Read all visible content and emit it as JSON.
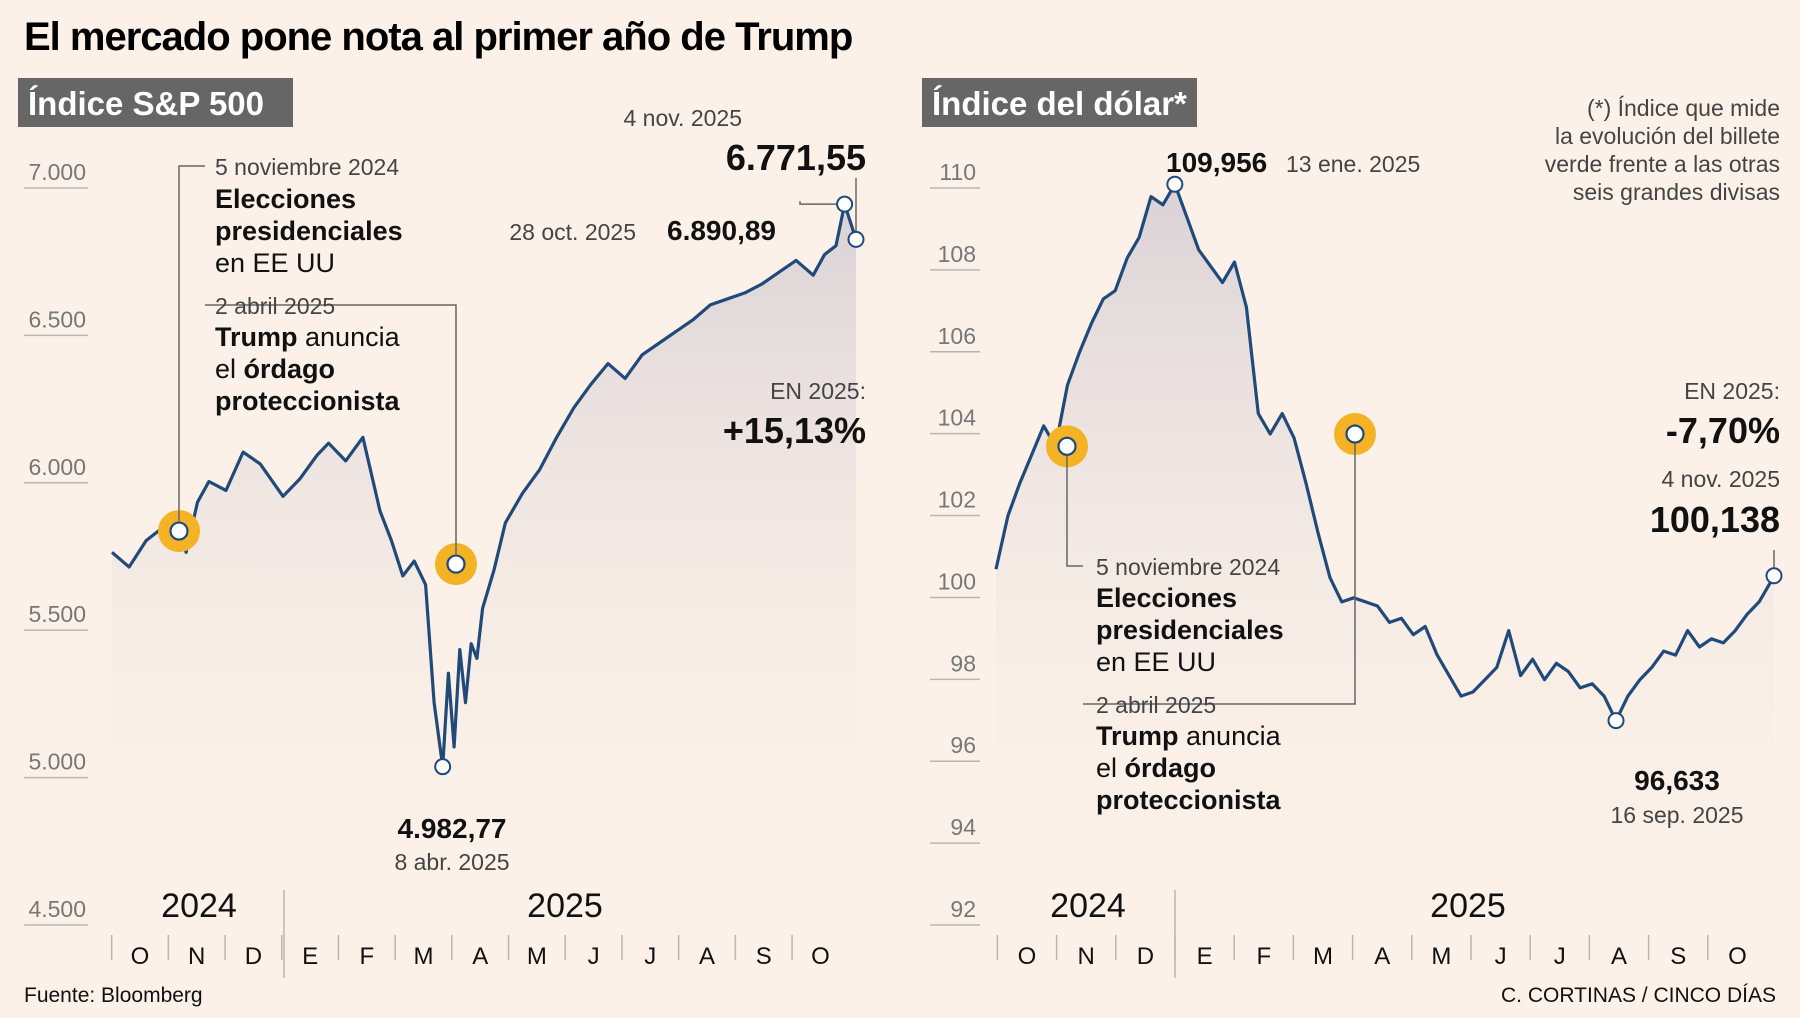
{
  "title": "El mercado pone nota al primer año de Trump",
  "source": "Fuente: Bloomberg",
  "credit": "C. CORTINAS / CINCO DÍAS",
  "colors": {
    "line": "#1f4a7a",
    "highlight": "#f3b324",
    "tag_bg": "#666666",
    "positive": "#1a6fb5",
    "negative": "#e0243c"
  },
  "chart_data": [
    {
      "type": "line",
      "title": "Índice S&P 500",
      "ylim": [
        4500,
        7000
      ],
      "yticks": [
        7000,
        6500,
        6000,
        5500,
        5000,
        4500
      ],
      "ytick_labels": [
        "7.000",
        "6.500",
        "6.000",
        "5.500",
        "5.000",
        "4.500"
      ],
      "years": [
        "2024",
        "2025"
      ],
      "months": [
        "O",
        "N",
        "D",
        "E",
        "F",
        "M",
        "A",
        "M",
        "J",
        "J",
        "A",
        "S",
        "O"
      ],
      "series": [
        {
          "name": "S&P 500",
          "x": [
            0.0,
            0.3,
            0.6,
            1.0,
            1.18,
            1.3,
            1.5,
            1.7,
            2.0,
            2.3,
            2.6,
            3.0,
            3.3,
            3.6,
            3.8,
            4.1,
            4.4,
            4.7,
            4.9,
            5.1,
            5.3,
            5.5,
            5.65,
            5.8,
            5.9,
            6.0,
            6.1,
            6.2,
            6.3,
            6.4,
            6.5,
            6.7,
            6.9,
            7.2,
            7.5,
            7.8,
            8.1,
            8.4,
            8.7,
            9.0,
            9.3,
            9.6,
            9.9,
            10.2,
            10.5,
            10.8,
            11.1,
            11.4,
            11.7,
            12.0,
            12.3,
            12.5,
            12.7,
            12.85,
            13.05
          ],
          "y": [
            5710,
            5660,
            5750,
            5810,
            5782,
            5710,
            5880,
            5950,
            5920,
            6050,
            6010,
            5900,
            5960,
            6040,
            6080,
            6020,
            6100,
            5850,
            5750,
            5630,
            5680,
            5600,
            5200,
            4982.77,
            5300,
            5050,
            5380,
            5200,
            5400,
            5350,
            5520,
            5650,
            5810,
            5910,
            5990,
            6100,
            6200,
            6280,
            6350,
            6300,
            6380,
            6420,
            6460,
            6500,
            6550,
            6570,
            6590,
            6620,
            6660,
            6700,
            6650,
            6720,
            6750,
            6890.89,
            6771.55
          ]
        }
      ],
      "annotations": [
        {
          "date": "5 noviembre 2024",
          "lines": [
            "Elecciones",
            "presidenciales",
            "en EE UU"
          ],
          "value": 5782
        },
        {
          "date": "2 abril 2025",
          "lines": [
            "Trump anuncia",
            "el órdago",
            "proteccionista"
          ],
          "value": 5670
        }
      ],
      "min": {
        "value_label": "4.982,77",
        "date": "8 abr. 2025"
      },
      "peak": {
        "date": "28 oct. 2025",
        "value_label": "6.890,89"
      },
      "last": {
        "date": "4 nov. 2025",
        "value_label": "6.771,55"
      },
      "ytd": {
        "label": "EN 2025:",
        "value": "+15,13%"
      }
    },
    {
      "type": "line",
      "title": "Índice del dólar*",
      "note": [
        "(*) Índice que mide",
        "la evolución del billete",
        "verde frente a las otras",
        "seis grandes divisas"
      ],
      "ylim": [
        92,
        110
      ],
      "yticks": [
        110,
        108,
        106,
        104,
        102,
        100,
        98,
        96,
        94,
        92
      ],
      "ytick_labels": [
        "110",
        "108",
        "106",
        "104",
        "102",
        "100",
        "98",
        "96",
        "94",
        "92"
      ],
      "years": [
        "2024",
        "2025"
      ],
      "months": [
        "O",
        "N",
        "D",
        "E",
        "F",
        "M",
        "A",
        "M",
        "J",
        "J",
        "A",
        "S",
        "O"
      ],
      "series": [
        {
          "name": "Índice del dólar",
          "x": [
            0.0,
            0.2,
            0.4,
            0.6,
            0.8,
            1.0,
            1.2,
            1.4,
            1.6,
            1.8,
            2.0,
            2.2,
            2.4,
            2.6,
            2.8,
            3.0,
            3.2,
            3.4,
            3.6,
            3.8,
            4.0,
            4.2,
            4.4,
            4.6,
            4.8,
            5.0,
            5.2,
            5.4,
            5.6,
            5.8,
            6.0,
            6.2,
            6.4,
            6.6,
            6.8,
            7.0,
            7.2,
            7.4,
            7.6,
            7.8,
            8.0,
            8.2,
            8.4,
            8.6,
            8.8,
            9.0,
            9.2,
            9.4,
            9.6,
            9.8,
            10.0,
            10.2,
            10.4,
            10.6,
            10.8,
            11.0,
            11.2,
            11.4,
            11.6,
            11.8,
            12.0,
            12.2,
            12.4,
            12.6,
            12.8,
            13.0,
            13.05
          ],
          "y": [
            100.3,
            101.6,
            102.4,
            103.1,
            103.8,
            103.3,
            104.8,
            105.6,
            106.3,
            106.9,
            107.1,
            107.9,
            108.4,
            109.4,
            109.2,
            109.7,
            108.9,
            108.1,
            107.7,
            107.3,
            107.8,
            106.7,
            104.1,
            103.6,
            104.1,
            103.5,
            102.4,
            101.2,
            100.1,
            99.5,
            99.6,
            99.5,
            99.4,
            99.0,
            99.1,
            98.7,
            98.9,
            98.2,
            97.7,
            97.2,
            97.3,
            97.6,
            97.9,
            98.8,
            97.7,
            98.1,
            97.6,
            98.0,
            97.8,
            97.4,
            97.5,
            97.2,
            96.6,
            97.2,
            97.6,
            97.9,
            98.3,
            98.2,
            98.8,
            98.4,
            98.6,
            98.5,
            98.8,
            99.2,
            99.5,
            100.0,
            100.138
          ]
        }
      ],
      "annotations": [
        {
          "date": "5 noviembre 2024",
          "lines": [
            "Elecciones",
            "presidenciales",
            "en EE UU"
          ],
          "value": 103.3
        },
        {
          "date": "2 abril 2025",
          "lines": [
            "Trump anuncia",
            "el órdago",
            "proteccionista"
          ],
          "value": 103.6
        }
      ],
      "max": {
        "value_label": "109,956",
        "date": "13 ene. 2025"
      },
      "min": {
        "value_label": "96,633",
        "date": "16 sep. 2025"
      },
      "last": {
        "date": "4 nov. 2025",
        "value_label": "100,138"
      },
      "ytd": {
        "label": "EN 2025:",
        "value": "-7,70%"
      }
    }
  ]
}
